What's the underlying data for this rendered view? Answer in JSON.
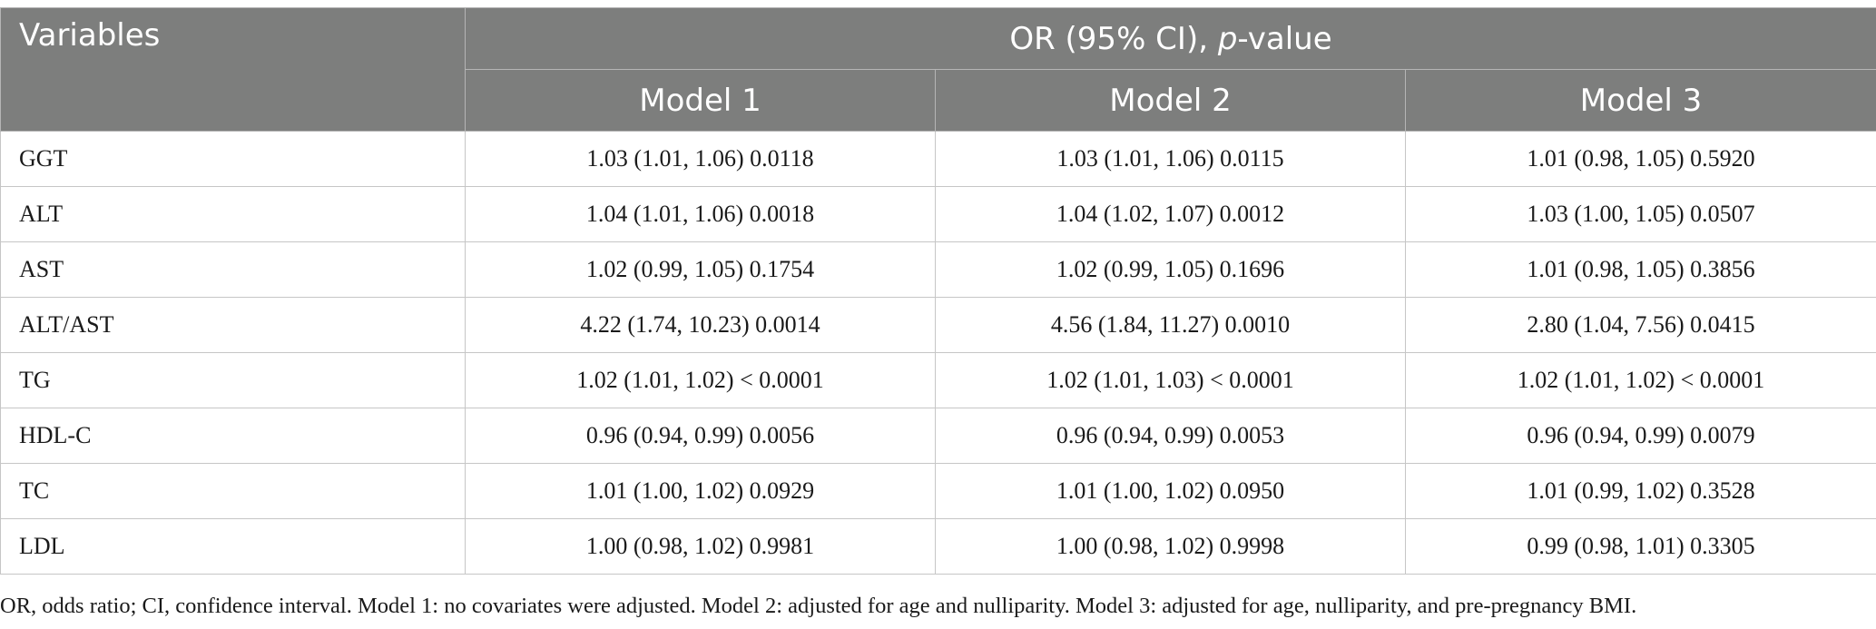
{
  "table": {
    "header": {
      "variables_label": "Variables",
      "group_prefix": "OR (95% CI), ",
      "group_italic": "p",
      "group_suffix": "-value",
      "models": [
        "Model 1",
        "Model 2",
        "Model 3"
      ]
    },
    "rows": [
      {
        "label": "GGT",
        "values": [
          "1.03 (1.01, 1.06) 0.0118",
          "1.03 (1.01, 1.06) 0.0115",
          "1.01 (0.98, 1.05) 0.5920"
        ]
      },
      {
        "label": "ALT",
        "values": [
          "1.04 (1.01, 1.06) 0.0018",
          "1.04 (1.02, 1.07) 0.0012",
          "1.03 (1.00, 1.05) 0.0507"
        ]
      },
      {
        "label": "AST",
        "values": [
          "1.02 (0.99, 1.05) 0.1754",
          "1.02 (0.99, 1.05) 0.1696",
          "1.01 (0.98, 1.05) 0.3856"
        ]
      },
      {
        "label": "ALT/AST",
        "values": [
          "4.22 (1.74, 10.23) 0.0014",
          "4.56 (1.84, 11.27) 0.0010",
          "2.80 (1.04, 7.56) 0.0415"
        ]
      },
      {
        "label": "TG",
        "values": [
          "1.02 (1.01, 1.02) < 0.0001",
          "1.02 (1.01, 1.03) < 0.0001",
          "1.02 (1.01, 1.02) < 0.0001"
        ]
      },
      {
        "label": "HDL-C",
        "values": [
          "0.96 (0.94, 0.99) 0.0056",
          "0.96 (0.94, 0.99) 0.0053",
          "0.96 (0.94, 0.99) 0.0079"
        ]
      },
      {
        "label": "TC",
        "values": [
          "1.01 (1.00, 1.02) 0.0929",
          "1.01 (1.00, 1.02) 0.0950",
          "1.01 (0.99, 1.02) 0.3528"
        ]
      },
      {
        "label": "LDL",
        "values": [
          "1.00 (0.98, 1.02) 0.9981",
          "1.00 (0.98, 1.02) 0.9998",
          "0.99 (0.98, 1.01) 0.3305"
        ]
      }
    ],
    "footnote": "OR, odds ratio; CI, confidence interval. Model 1: no covariates were adjusted. Model 2: adjusted for age and nulliparity. Model 3: adjusted for age, nulliparity, and pre-pregnancy BMI."
  }
}
